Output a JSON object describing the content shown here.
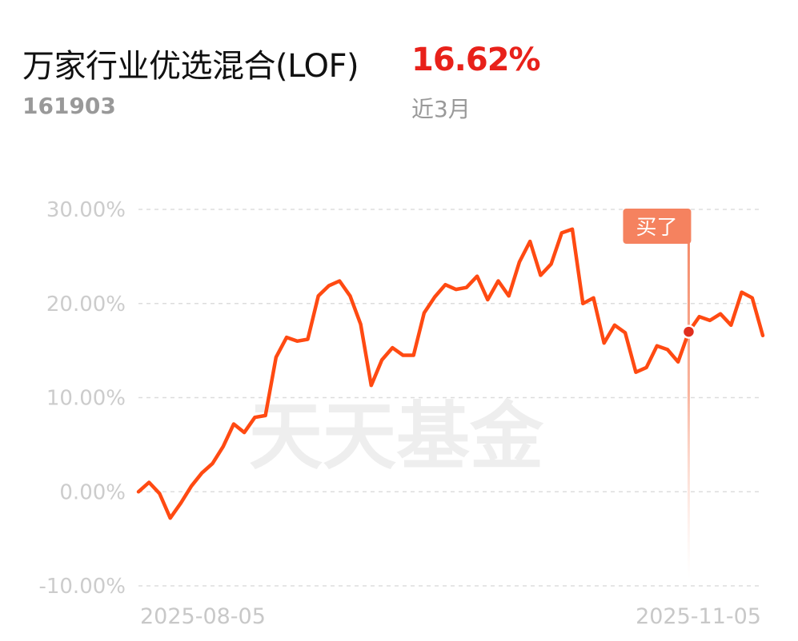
{
  "header": {
    "fund_name": "万家行业优选混合(LOF)",
    "fund_code": "161903",
    "return_value": "16.62%",
    "period_label": "近3月"
  },
  "watermark": "天天基金",
  "colors": {
    "line": "#ff4a12",
    "return_text": "#e8211a",
    "marker_fill": "#f5825f",
    "marker_dot": "#e02e1e",
    "grid": "#dddddd"
  },
  "chart_data": {
    "type": "line",
    "x_tick_labels": [
      "2025-08-05",
      "2025-11-05"
    ],
    "y_tick_labels": [
      "30.00%",
      "20.00%",
      "10.00%",
      "0.00%",
      "-10.00%"
    ],
    "y_ticks": [
      30,
      20,
      10,
      0,
      -10
    ],
    "ylim": [
      -10,
      30
    ],
    "grid": true,
    "series": [
      {
        "values": [
          0.0,
          1.0,
          -0.2,
          -2.8,
          -1.2,
          0.6,
          2.0,
          3.0,
          4.8,
          7.2,
          6.3,
          7.9,
          8.1,
          14.3,
          16.4,
          16.0,
          16.2,
          20.8,
          21.9,
          22.4,
          20.8,
          17.8,
          11.3,
          14.0,
          15.3,
          14.5,
          14.5,
          19.0,
          20.7,
          22.0,
          21.5,
          21.7,
          22.9,
          20.4,
          22.4,
          20.8,
          24.4,
          26.6,
          23.0,
          24.2,
          27.5,
          27.9,
          20.0,
          20.6,
          15.8,
          17.7,
          16.9,
          12.7,
          13.2,
          15.5,
          15.1,
          13.8,
          17.0,
          18.6,
          18.2,
          18.9,
          17.7,
          21.2,
          20.6,
          16.6
        ]
      }
    ],
    "annotations": [
      {
        "label": "买了",
        "index": 52,
        "value": 17.0
      }
    ]
  }
}
